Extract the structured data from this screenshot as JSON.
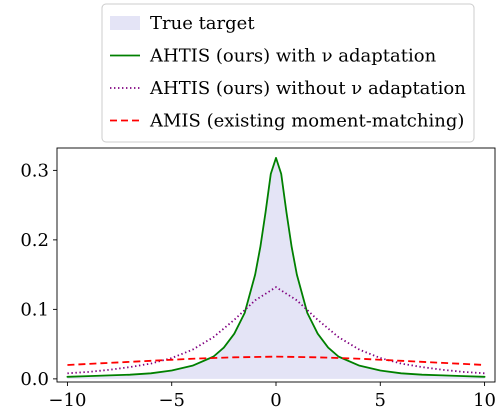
{
  "chart_data": {
    "type": "line",
    "title": "",
    "xlabel": "",
    "ylabel": "",
    "xlim": [
      -10,
      10
    ],
    "ylim": [
      0,
      0.33
    ],
    "xticks": [
      -10,
      -5,
      0,
      5,
      10
    ],
    "yticks": [
      0.0,
      0.1,
      0.2,
      0.3
    ],
    "xtick_labels": [
      "−10",
      "−5",
      "0",
      "5",
      "10"
    ],
    "ytick_labels": [
      "0.0",
      "0.1",
      "0.2",
      "0.3"
    ],
    "grid": false,
    "legend_position": "top-center (above plot)",
    "series": [
      {
        "name": "True target",
        "style": "filled area",
        "color": "#e4e4f6",
        "x": [
          -10,
          -9,
          -8,
          -7,
          -6,
          -5,
          -4,
          -3,
          -2.5,
          -2,
          -1.5,
          -1,
          -0.75,
          -0.5,
          -0.25,
          0,
          0.25,
          0.5,
          0.75,
          1,
          1.5,
          2,
          2.5,
          3,
          4,
          5,
          6,
          7,
          8,
          9,
          10
        ],
        "y": [
          0.003,
          0.004,
          0.005,
          0.006,
          0.008,
          0.012,
          0.019,
          0.032,
          0.045,
          0.065,
          0.095,
          0.15,
          0.19,
          0.24,
          0.295,
          0.318,
          0.295,
          0.24,
          0.19,
          0.15,
          0.095,
          0.065,
          0.045,
          0.032,
          0.019,
          0.012,
          0.008,
          0.006,
          0.005,
          0.004,
          0.003
        ]
      },
      {
        "name": "AHTIS (ours) with ν adaptation",
        "style": "solid",
        "color": "#008000",
        "x": [
          -10,
          -9,
          -8,
          -7,
          -6,
          -5,
          -4,
          -3,
          -2.5,
          -2,
          -1.5,
          -1,
          -0.75,
          -0.5,
          -0.25,
          0,
          0.25,
          0.5,
          0.75,
          1,
          1.5,
          2,
          2.5,
          3,
          4,
          5,
          6,
          7,
          8,
          9,
          10
        ],
        "y": [
          0.003,
          0.004,
          0.005,
          0.006,
          0.008,
          0.012,
          0.019,
          0.032,
          0.045,
          0.065,
          0.095,
          0.15,
          0.19,
          0.24,
          0.295,
          0.318,
          0.295,
          0.24,
          0.19,
          0.15,
          0.095,
          0.065,
          0.045,
          0.032,
          0.019,
          0.012,
          0.008,
          0.006,
          0.005,
          0.004,
          0.003
        ]
      },
      {
        "name": "AHTIS (ours) without ν adaptation",
        "style": "dotted",
        "color": "#800080",
        "x": [
          -10,
          -9,
          -8,
          -7,
          -6,
          -5,
          -4,
          -3,
          -2,
          -1,
          0,
          1,
          2,
          3,
          4,
          5,
          6,
          7,
          8,
          9,
          10
        ],
        "y": [
          0.008,
          0.01,
          0.013,
          0.017,
          0.022,
          0.03,
          0.042,
          0.06,
          0.085,
          0.113,
          0.132,
          0.113,
          0.085,
          0.06,
          0.042,
          0.03,
          0.022,
          0.017,
          0.013,
          0.01,
          0.008
        ]
      },
      {
        "name": "AMIS (existing moment-matching)",
        "style": "dashed",
        "color": "#ff0000",
        "x": [
          -10,
          -8,
          -6,
          -4,
          -2,
          0,
          2,
          4,
          6,
          8,
          10
        ],
        "y": [
          0.02,
          0.023,
          0.026,
          0.029,
          0.031,
          0.032,
          0.031,
          0.029,
          0.026,
          0.023,
          0.02
        ]
      }
    ]
  }
}
